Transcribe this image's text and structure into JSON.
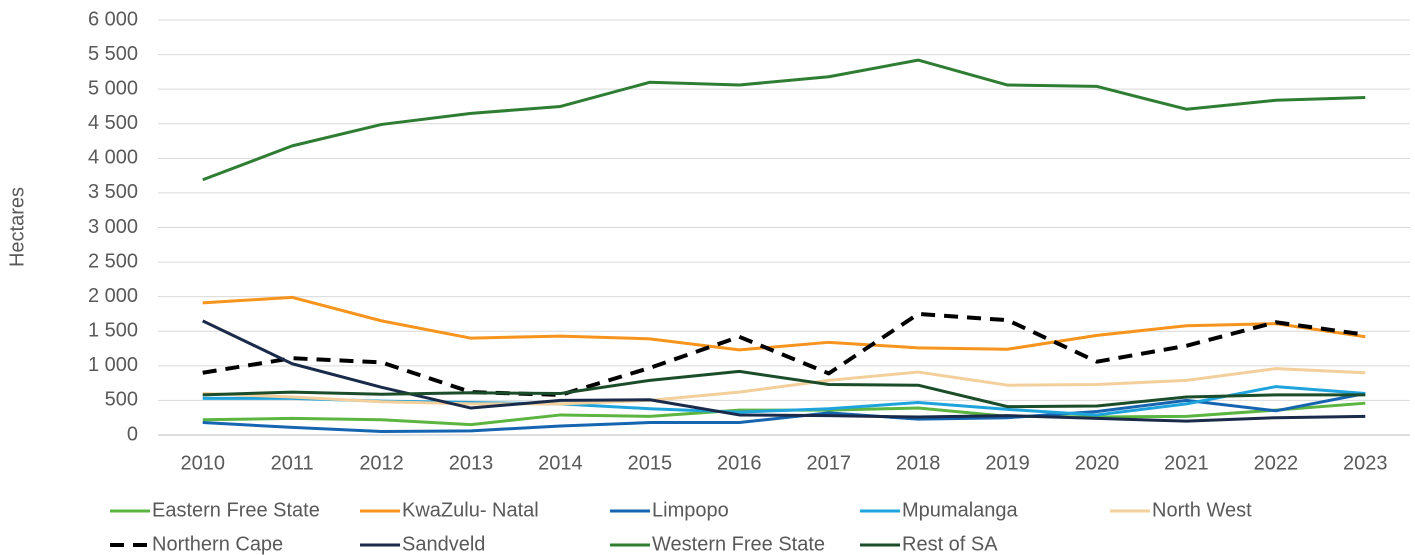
{
  "chart_data": {
    "type": "line",
    "y_label": "Hectares",
    "x": [
      "2010",
      "2011",
      "2012",
      "2013",
      "2014",
      "2015",
      "2016",
      "2017",
      "2018",
      "2019",
      "2020",
      "2021",
      "2022",
      "2023"
    ],
    "ylim": [
      0,
      6000
    ],
    "yticks": [
      0,
      500,
      {
        "value": 1000,
        "label": "1 000"
      },
      {
        "value": 1500,
        "label": "1 500"
      },
      {
        "value": 2000,
        "label": "2 000"
      },
      {
        "value": 2500,
        "label": "2 500"
      },
      {
        "value": 3000,
        "label": "3 000"
      },
      {
        "value": 3500,
        "label": "3 500"
      },
      {
        "value": 4000,
        "label": "4 000"
      },
      {
        "value": 4500,
        "label": "4 500"
      },
      {
        "value": 5000,
        "label": "5 000"
      },
      {
        "value": 5500,
        "label": "5 500"
      },
      {
        "value": 6000,
        "label": "6 000"
      }
    ],
    "grid": true,
    "series": [
      {
        "name": "Eastern Free State",
        "color": "#5bb540",
        "values": [
          220,
          240,
          220,
          150,
          290,
          270,
          360,
          360,
          390,
          270,
          260,
          270,
          360,
          460
        ]
      },
      {
        "name": "KwaZulu- Natal",
        "color": "#f7941d",
        "values": [
          1910,
          1990,
          1650,
          1400,
          1430,
          1390,
          1230,
          1340,
          1260,
          1240,
          1440,
          1580,
          1610,
          1420
        ]
      },
      {
        "name": "Limpopo",
        "color": "#1565b0",
        "values": [
          180,
          110,
          50,
          60,
          130,
          180,
          180,
          320,
          230,
          250,
          340,
          500,
          350,
          600
        ]
      },
      {
        "name": "Mpumalanga",
        "color": "#1fa3dc",
        "values": [
          530,
          530,
          490,
          470,
          450,
          380,
          330,
          380,
          470,
          370,
          290,
          450,
          700,
          600
        ]
      },
      {
        "name": "North West",
        "color": "#f3cf9c",
        "values": [
          600,
          550,
          480,
          450,
          450,
          500,
          620,
          790,
          910,
          720,
          730,
          790,
          960,
          900
        ]
      },
      {
        "name": "Northern Cape",
        "color": "#000000",
        "dashed": true,
        "values": [
          900,
          1110,
          1050,
          620,
          580,
          970,
          1420,
          890,
          1750,
          1660,
          1060,
          1290,
          1630,
          1450
        ]
      },
      {
        "name": "Sandveld",
        "color": "#1a2a4a",
        "values": [
          1650,
          1030,
          690,
          390,
          500,
          510,
          290,
          280,
          260,
          280,
          240,
          200,
          250,
          270
        ]
      },
      {
        "name": "Western Free State",
        "color": "#2e7d32",
        "values": [
          3690,
          4180,
          4490,
          4650,
          4750,
          5100,
          5060,
          5180,
          5420,
          5060,
          5040,
          4710,
          4840,
          4880
        ]
      },
      {
        "name": "Rest of SA",
        "color": "#1b4d2a",
        "values": [
          580,
          620,
          590,
          610,
          600,
          790,
          920,
          730,
          720,
          410,
          420,
          550,
          580,
          580
        ]
      }
    ]
  }
}
